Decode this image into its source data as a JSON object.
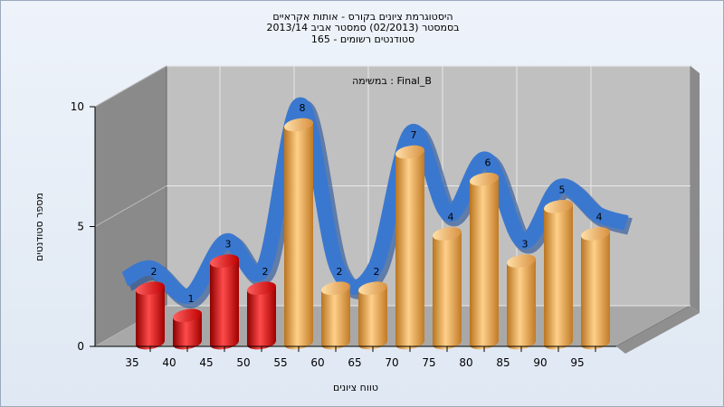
{
  "chart_data": {
    "type": "bar",
    "title_lines": [
      "היסטוגרמת ציונים בקורס - אותות אקראיים",
      "בסמסטר  (02/2013)  סמסטר אביב 2013/14",
      "סטודנטים רשומים - 165"
    ],
    "subtitle": "במשימה : Final_B",
    "xlabel": "טווח ציונים",
    "ylabel": "מספר סטודנטים",
    "x_ticks": [
      "35",
      "40",
      "45",
      "50",
      "55",
      "60",
      "65",
      "70",
      "75",
      "80",
      "85",
      "90",
      "95"
    ],
    "y_ticks": [
      "0",
      "5",
      "10"
    ],
    "ylim": [
      0,
      10
    ],
    "grid": true,
    "bars": [
      {
        "bin": "35",
        "value": 2,
        "color": "#e01818"
      },
      {
        "bin": "40",
        "value": 1,
        "color": "#e01818"
      },
      {
        "bin": "45",
        "value": 3,
        "color": "#e01818"
      },
      {
        "bin": "50",
        "value": 2,
        "color": "#e01818"
      },
      {
        "bin": "55",
        "value": 8,
        "color": "#e8a040"
      },
      {
        "bin": "60",
        "value": 2,
        "color": "#e8a040"
      },
      {
        "bin": "65",
        "value": 2,
        "color": "#e8a040"
      },
      {
        "bin": "70",
        "value": 7,
        "color": "#e8a040"
      },
      {
        "bin": "75",
        "value": 4,
        "color": "#e8a040"
      },
      {
        "bin": "80",
        "value": 6,
        "color": "#e8a040"
      },
      {
        "bin": "85",
        "value": 3,
        "color": "#e8a040"
      },
      {
        "bin": "90",
        "value": 5,
        "color": "#e8a040"
      },
      {
        "bin": "95",
        "value": 4,
        "color": "#e8a040"
      }
    ],
    "curve_color": "#3a78d0"
  }
}
